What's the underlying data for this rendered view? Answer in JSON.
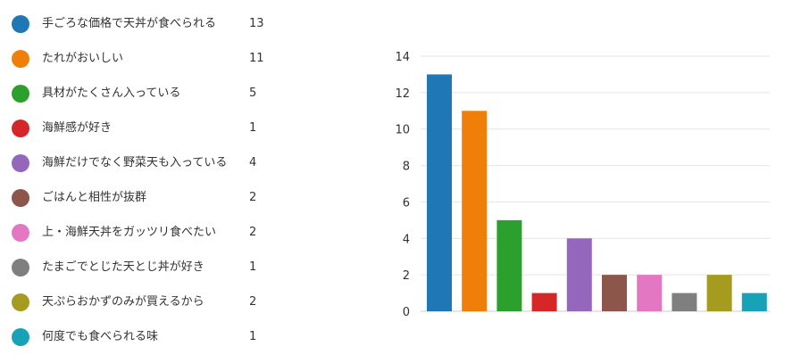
{
  "chart_data": {
    "type": "bar",
    "categories": [
      "手ごろな価格で天丼が食べられる",
      "たれがおいしい",
      "具材がたくさん入っている",
      "海鮮感が好き",
      "海鮮だけでなく野菜天も入っている",
      "ごはんと相性が抜群",
      "上・海鮮天丼をガッツリ食べたい",
      "たまごでとじた天とじ丼が好き",
      "天ぷらおかずのみが買えるから",
      "何度でも食べられる味"
    ],
    "values": [
      13,
      11,
      5,
      1,
      4,
      2,
      2,
      1,
      2,
      1
    ],
    "colors": [
      "#1f77b4",
      "#f07f09",
      "#2ca02c",
      "#d62728",
      "#9467bd",
      "#8c564b",
      "#e377c2",
      "#7f7f7f",
      "#a59b1e",
      "#17a2b8"
    ],
    "ylim": [
      0,
      14
    ],
    "yticks": [
      "0",
      "2",
      "4",
      "6",
      "8",
      "10",
      "12",
      "14"
    ],
    "grid": true,
    "legend": "left"
  }
}
